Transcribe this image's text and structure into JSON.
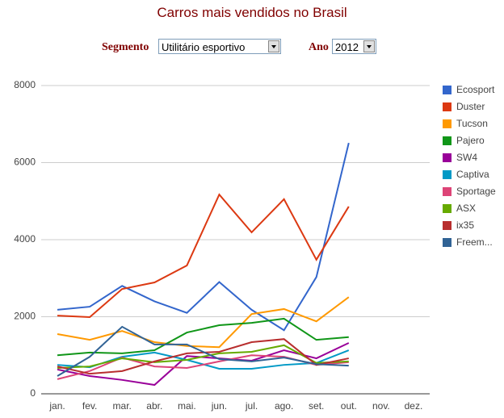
{
  "controls": {
    "segment_label": "Segmento",
    "segment_value": "Utilitário esportivo",
    "year_label": "Ano",
    "year_value": "2012"
  },
  "chart_data": {
    "type": "line",
    "title": "Carros mais vendidos no Brasil",
    "categories": [
      "jan.",
      "fev.",
      "mar.",
      "abr.",
      "mai.",
      "jun.",
      "jul.",
      "ago.",
      "set.",
      "out.",
      "nov.",
      "dez."
    ],
    "ylim": [
      0,
      8000
    ],
    "yticks": [
      0,
      2000,
      4000,
      6000,
      8000
    ],
    "grid": true,
    "legend": "right",
    "series": [
      {
        "name": "Ecosport",
        "color": "#3366cc",
        "values": [
          2180,
          2260,
          2800,
          2400,
          2100,
          2900,
          2180,
          1650,
          3030,
          6510,
          null,
          null
        ]
      },
      {
        "name": "Duster",
        "color": "#dc3912",
        "values": [
          2030,
          1990,
          2720,
          2890,
          3330,
          5170,
          4190,
          5050,
          3480,
          4860,
          null,
          null
        ]
      },
      {
        "name": "Tucson",
        "color": "#ff9900",
        "values": [
          1550,
          1400,
          1630,
          1340,
          1240,
          1210,
          2070,
          2200,
          1880,
          2510,
          null,
          null
        ]
      },
      {
        "name": "Pajero",
        "color": "#109618",
        "values": [
          1000,
          1070,
          1050,
          1130,
          1590,
          1780,
          1840,
          1950,
          1400,
          1470,
          null,
          null
        ]
      },
      {
        "name": "SW4",
        "color": "#990099",
        "values": [
          630,
          460,
          360,
          230,
          980,
          920,
          860,
          1130,
          920,
          1320,
          null,
          null
        ]
      },
      {
        "name": "Captiva",
        "color": "#0099c6",
        "values": [
          750,
          690,
          960,
          1070,
          880,
          650,
          650,
          750,
          800,
          1130,
          null,
          null
        ]
      },
      {
        "name": "Sportage",
        "color": "#dd4477",
        "values": [
          380,
          590,
          940,
          710,
          670,
          840,
          1000,
          960,
          750,
          820,
          null,
          null
        ]
      },
      {
        "name": "ASX",
        "color": "#66aa00",
        "values": [
          670,
          710,
          920,
          820,
          880,
          1050,
          1090,
          1260,
          800,
          840,
          null,
          null
        ]
      },
      {
        "name": "ix35",
        "color": "#b82e2e",
        "values": [
          710,
          520,
          590,
          840,
          1050,
          1090,
          1340,
          1420,
          750,
          920,
          null,
          null
        ]
      },
      {
        "name": "Freem...",
        "color": "#316395",
        "values": [
          460,
          960,
          1740,
          1280,
          1280,
          900,
          840,
          940,
          770,
          730,
          null,
          null
        ]
      }
    ]
  }
}
